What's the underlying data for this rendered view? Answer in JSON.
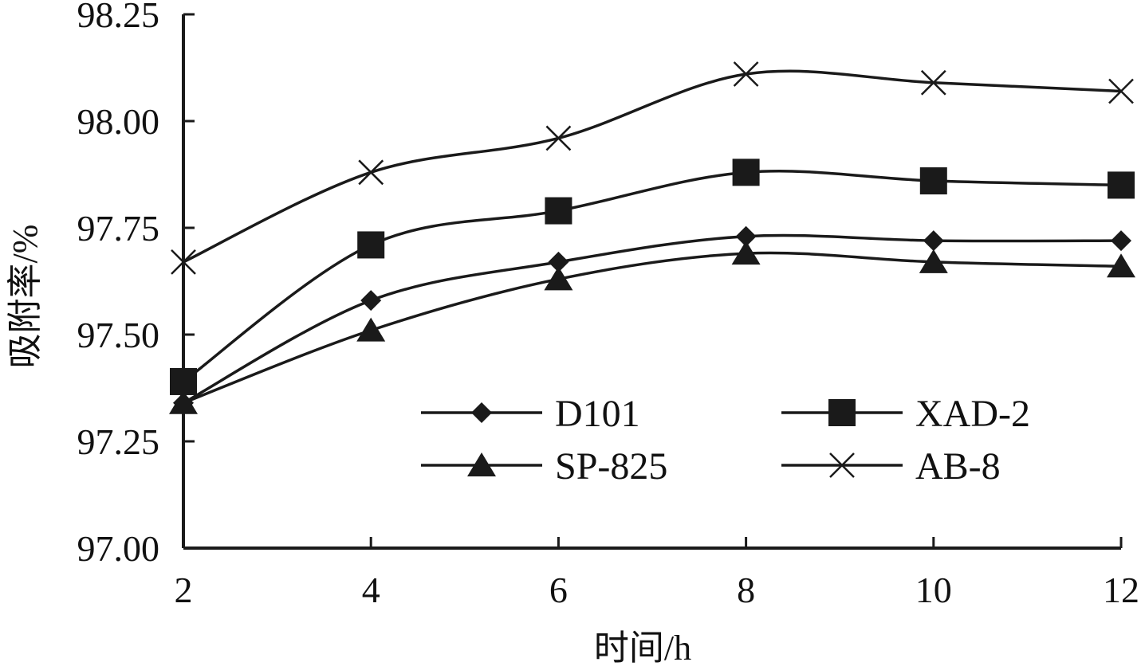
{
  "chart_data": {
    "type": "line",
    "title": "",
    "xlabel": "时间/h",
    "ylabel": "吸附率/%",
    "x": [
      2,
      4,
      6,
      8,
      10,
      12
    ],
    "xlim": [
      2,
      12
    ],
    "ylim": [
      97.0,
      98.25
    ],
    "x_ticks": [
      "2",
      "4",
      "6",
      "8",
      "10",
      "12"
    ],
    "y_ticks": [
      "97.00",
      "97.25",
      "97.50",
      "97.75",
      "98.00",
      "98.25"
    ],
    "grid": false,
    "legend_position": "bottom-right inside plot",
    "series": [
      {
        "name": "D101",
        "marker": "diamond",
        "values": [
          97.34,
          97.58,
          97.67,
          97.73,
          97.72,
          97.72
        ]
      },
      {
        "name": "XAD-2",
        "marker": "square",
        "values": [
          97.39,
          97.71,
          97.79,
          97.88,
          97.86,
          97.85
        ]
      },
      {
        "name": "SP-825",
        "marker": "triangle",
        "values": [
          97.34,
          97.51,
          97.63,
          97.69,
          97.67,
          97.66
        ]
      },
      {
        "name": "AB-8",
        "marker": "x",
        "values": [
          97.67,
          97.88,
          97.96,
          98.11,
          98.09,
          98.07
        ]
      }
    ],
    "legend": [
      "D101",
      "XAD-2",
      "SP-825",
      "AB-8"
    ],
    "line_color": "#1a1a1a"
  }
}
